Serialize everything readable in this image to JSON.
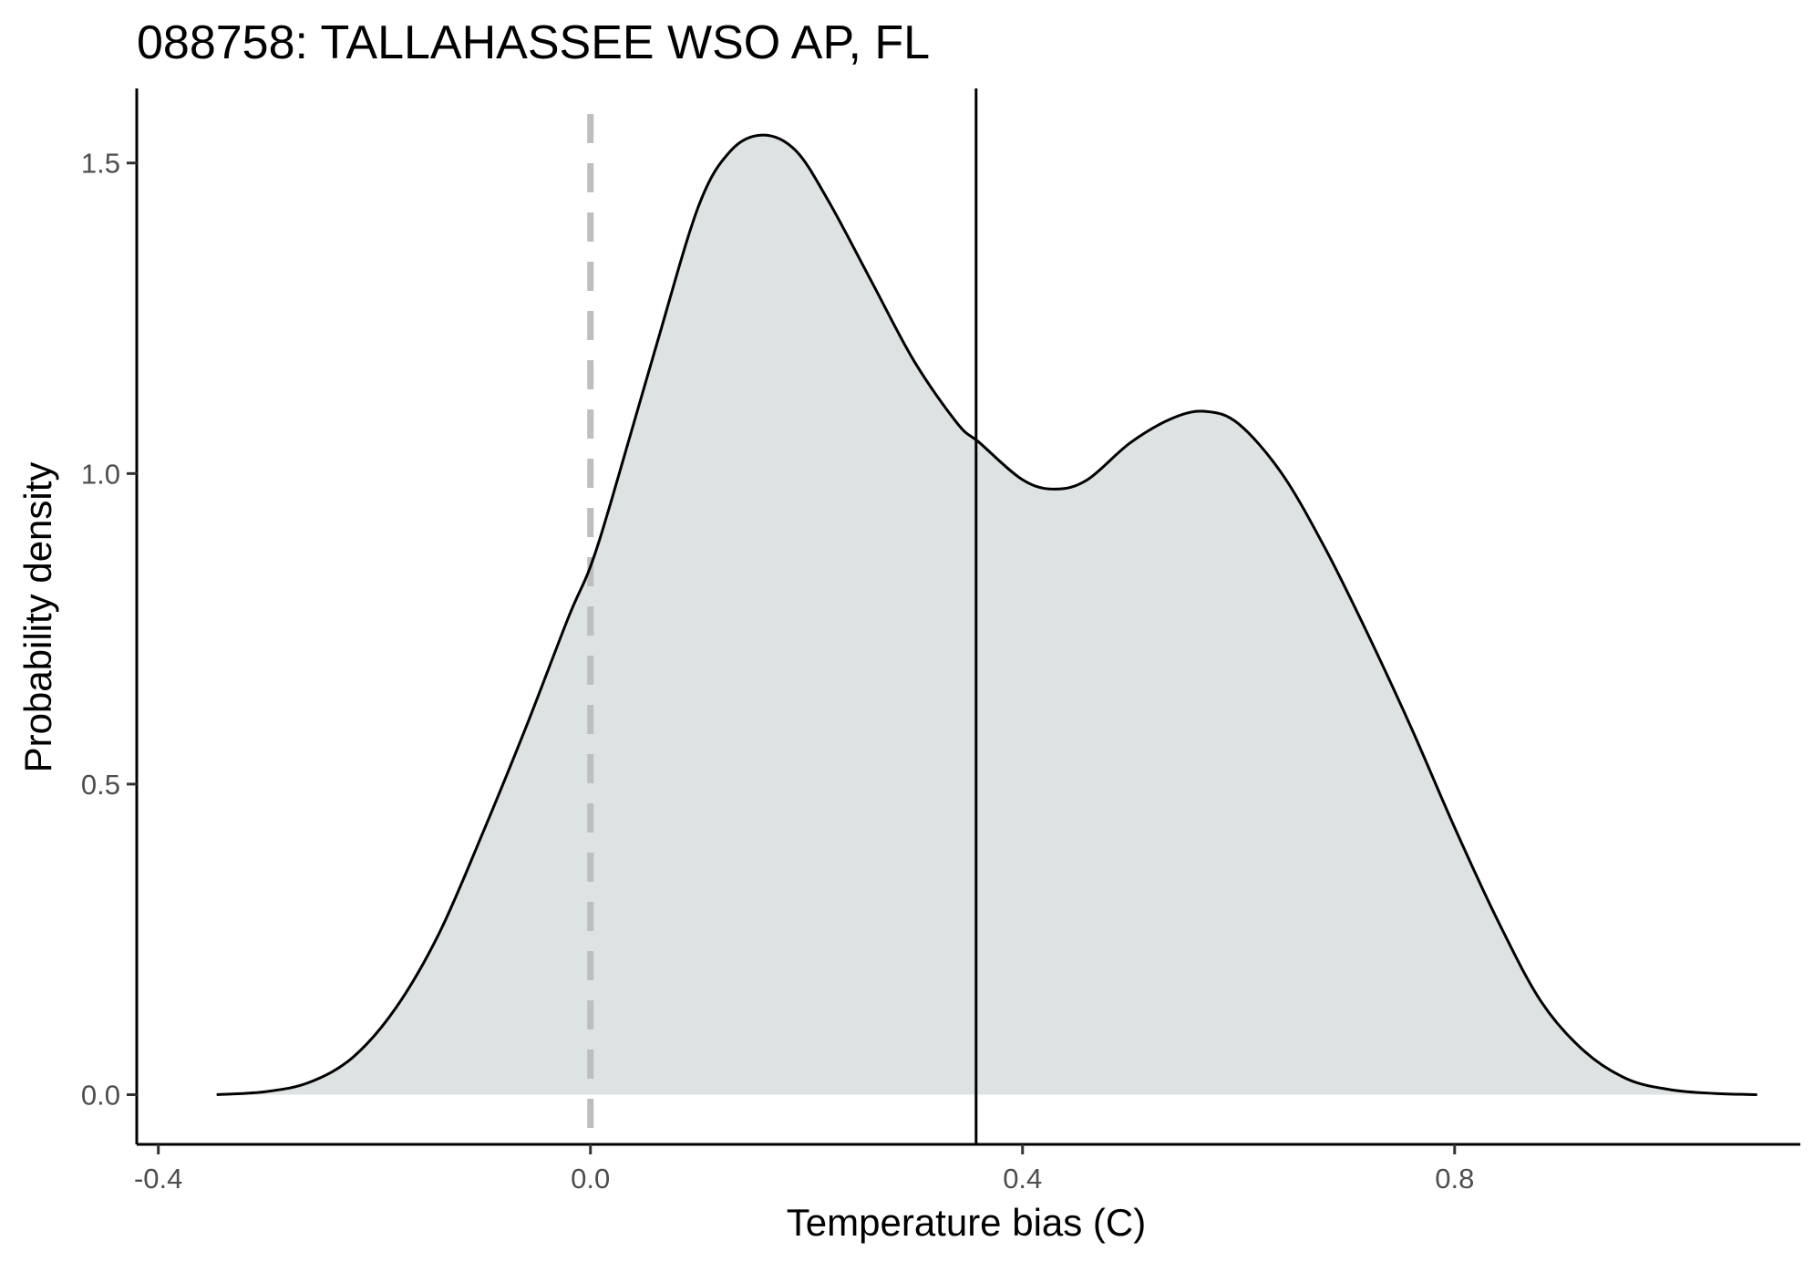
{
  "chart_data": {
    "type": "area",
    "title": "088758: TALLAHASSEE WSO AP, FL",
    "xlabel": "Temperature bias (C)",
    "ylabel": "Probability density",
    "xlim": [
      -0.42,
      1.12
    ],
    "ylim": [
      -0.08,
      1.62
    ],
    "xticks": [
      -0.4,
      0.0,
      0.4,
      0.8
    ],
    "xtick_labels": [
      "-0.4",
      "0.0",
      "0.4",
      "0.8"
    ],
    "yticks": [
      0.0,
      0.5,
      1.0,
      1.5
    ],
    "ytick_labels": [
      "0.0",
      "0.5",
      "1.0",
      "1.5"
    ],
    "grid": false,
    "series": [
      {
        "x": [
          -0.346,
          -0.3,
          -0.26,
          -0.22,
          -0.18,
          -0.14,
          -0.1,
          -0.06,
          -0.02,
          0.0,
          0.02,
          0.06,
          0.1,
          0.13,
          0.16,
          0.19,
          0.22,
          0.26,
          0.3,
          0.34,
          0.36,
          0.4,
          0.43,
          0.46,
          0.5,
          0.54,
          0.57,
          0.6,
          0.64,
          0.68,
          0.72,
          0.76,
          0.8,
          0.84,
          0.88,
          0.92,
          0.96,
          1.0,
          1.04,
          1.08
        ],
        "y": [
          0.0,
          0.005,
          0.02,
          0.06,
          0.14,
          0.26,
          0.42,
          0.59,
          0.77,
          0.85,
          0.96,
          1.2,
          1.43,
          1.52,
          1.545,
          1.52,
          1.44,
          1.31,
          1.18,
          1.08,
          1.05,
          0.99,
          0.975,
          0.99,
          1.05,
          1.09,
          1.1,
          1.08,
          1.0,
          0.88,
          0.74,
          0.59,
          0.43,
          0.28,
          0.15,
          0.07,
          0.025,
          0.008,
          0.002,
          0.0
        ],
        "fill": "#dde2e3",
        "line_color": "#000000"
      }
    ],
    "reference_lines": [
      {
        "x": 0.0,
        "style": "dashed",
        "color": "#bebebe"
      },
      {
        "x": 0.357,
        "style": "solid",
        "color": "#000000"
      }
    ]
  }
}
